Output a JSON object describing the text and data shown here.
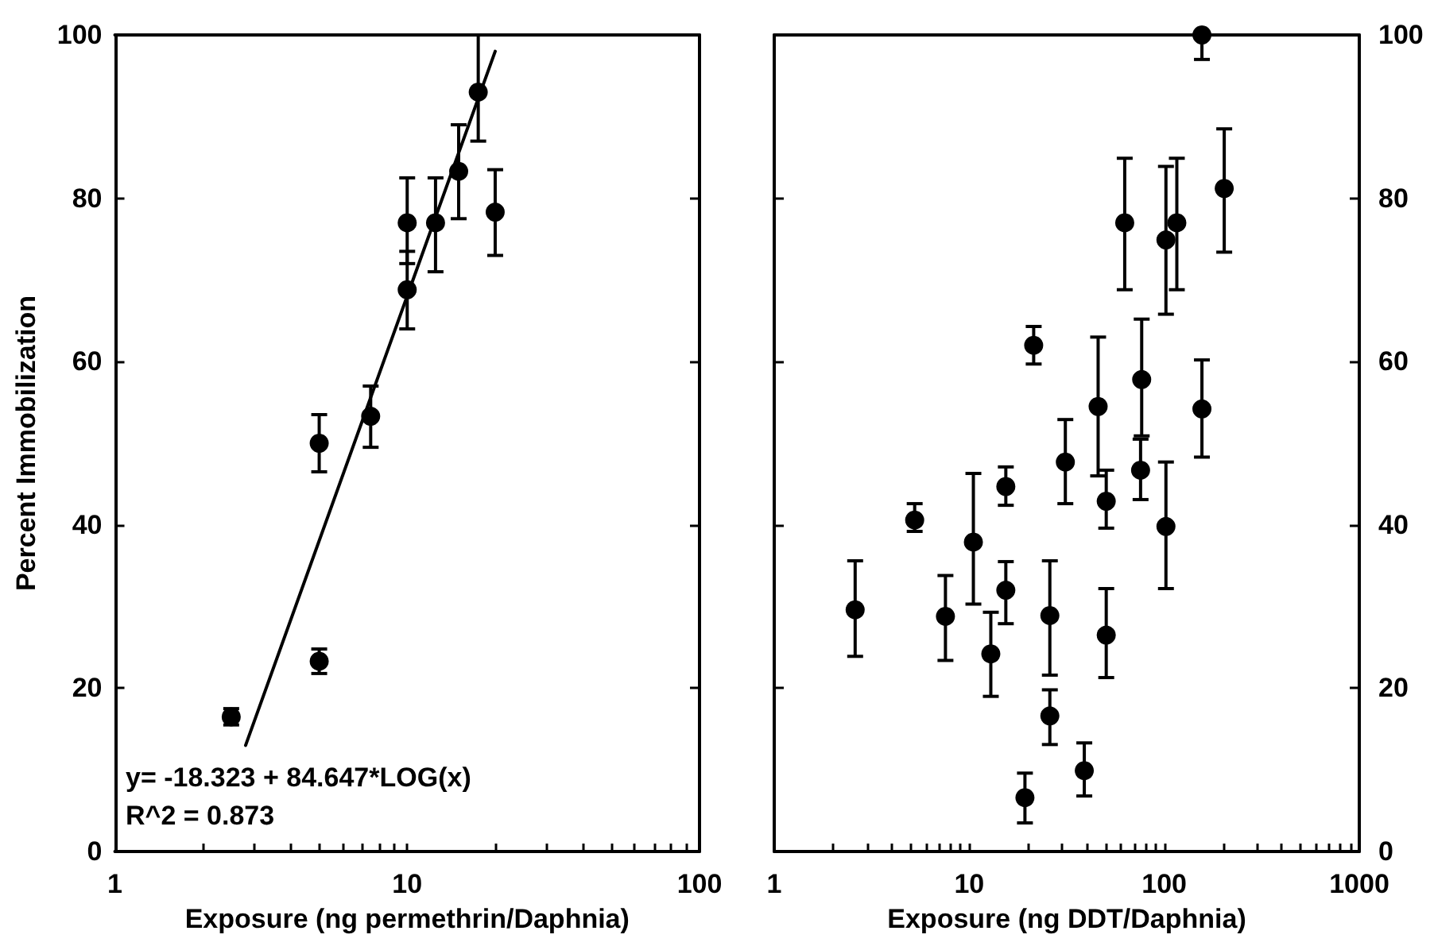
{
  "chart_data": [
    {
      "type": "scatter",
      "xlabel": "Exposure (ng permethrin/Daphnia)",
      "ylabel": "Percent Immobilization",
      "log": "x",
      "xlim": [
        1,
        100
      ],
      "xticks": [
        1,
        10,
        100
      ],
      "ylim": [
        0,
        100
      ],
      "yticks": [
        0,
        20,
        40,
        60,
        80,
        100
      ],
      "marker": "circle",
      "grid": false,
      "annotations": [
        "y= -18.323 + 84.647*LOG(x)",
        "R^2 = 0.873"
      ],
      "series": [
        {
          "color": "#000000",
          "x": [
            2.5,
            5,
            5,
            7.5,
            10,
            10,
            12.5,
            15,
            17.5,
            20
          ],
          "values": [
            16.5,
            23.3,
            50,
            53.3,
            68.8,
            77,
            77,
            83.3,
            93,
            78.3
          ],
          "errors": [
            [
              15.5,
              17.5
            ],
            [
              21.8,
              24.8
            ],
            [
              46.5,
              53.5
            ],
            [
              49.5,
              57
            ],
            [
              64,
              73.5
            ],
            [
              72,
              82.5
            ],
            [
              71,
              82.5
            ],
            [
              77.5,
              89
            ],
            [
              87,
              100
            ],
            [
              73,
              83.5
            ]
          ]
        },
        {
          "type": "line",
          "marker": "none",
          "color": "#000000",
          "x": [
            2.8,
            20
          ],
          "values": [
            13,
            98
          ]
        }
      ]
    },
    {
      "type": "scatter",
      "xlabel": "Exposure (ng DDT/Daphnia)",
      "log": "x",
      "xlim": [
        1,
        1000
      ],
      "xticks": [
        1,
        10,
        100,
        1000
      ],
      "y2lim": [
        0,
        100
      ],
      "y2ticks": [
        0,
        20,
        40,
        60,
        80,
        100
      ],
      "marker": "circle",
      "grid": false,
      "series": [
        {
          "axis": "y2",
          "color": "#000000",
          "x": [
            2.6,
            5.25,
            7.55,
            10.5,
            12.9,
            15.4,
            15.4,
            19.3,
            21.4,
            25.9,
            25.9,
            31.1,
            38.9,
            45.8,
            50.4,
            50.4,
            62.7,
            75.6,
            76.6,
            102,
            102,
            116,
            156,
            156,
            203
          ],
          "values": [
            29.6,
            40.6,
            28.8,
            37.9,
            24.2,
            44.7,
            32,
            6.6,
            62,
            28.9,
            16.6,
            47.7,
            9.9,
            54.5,
            42.9,
            26.5,
            77,
            46.7,
            57.8,
            74.9,
            39.8,
            77,
            100,
            54.2,
            81.2
          ],
          "errors": [
            [
              23.9,
              35.6
            ],
            [
              39.2,
              42.6
            ],
            [
              23.4,
              33.8
            ],
            [
              30.3,
              46.3
            ],
            [
              19,
              29.3
            ],
            [
              42.4,
              47.1
            ],
            [
              27.9,
              35.5
            ],
            [
              3.5,
              9.6
            ],
            [
              59.7,
              64.3
            ],
            [
              21.6,
              35.6
            ],
            [
              13.1,
              19.8
            ],
            [
              42.6,
              52.9
            ],
            [
              6.8,
              13.3
            ],
            [
              46,
              63
            ],
            [
              39.6,
              46.7
            ],
            [
              21.3,
              32.2
            ],
            [
              68.8,
              84.9
            ],
            [
              43.1,
              50.5
            ],
            [
              50.9,
              65.2
            ],
            [
              65.8,
              83.9
            ],
            [
              32.2,
              47.7
            ],
            [
              68.8,
              84.9
            ],
            [
              97,
              100
            ],
            [
              48.3,
              60.2
            ],
            [
              73.4,
              88.5
            ]
          ]
        }
      ]
    }
  ]
}
